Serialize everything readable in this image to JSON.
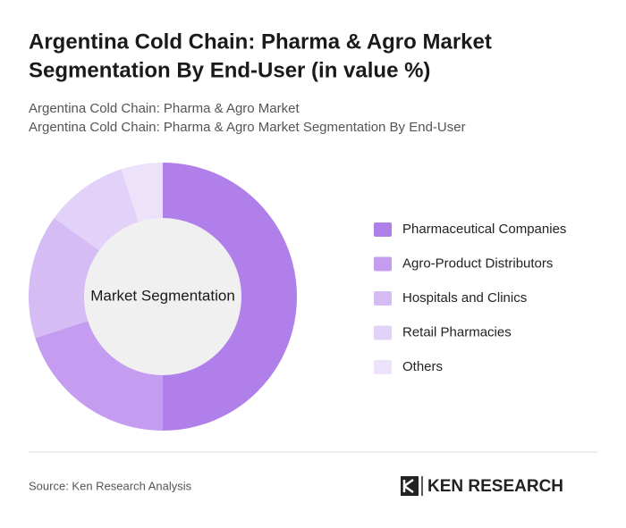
{
  "chart_data": {
    "type": "donut",
    "title": [
      "Argentina Cold Chain: Pharma & Agro Market",
      "Segmentation By End-User (in value %)"
    ],
    "subtitles": [
      "Argentina Cold Chain: Pharma & Agro Market",
      "Argentina Cold Chain: Pharma & Agro Market Segmentation By End-User"
    ],
    "center_label": "Market Segmentation",
    "categories": [
      "Pharmaceutical Companies",
      "Agro-Product Distributors",
      "Hospitals and Clinics",
      "Retail Pharmacies",
      "Others"
    ],
    "values": [
      50,
      20,
      15,
      10,
      5
    ],
    "colors": [
      "#b07fea",
      "#c49df0",
      "#d6bcf5",
      "#e2d1f8",
      "#ece2fa"
    ],
    "legend": "right",
    "source": "Source: Ken Research Analysis",
    "logo": "KEN RESEARCH"
  }
}
